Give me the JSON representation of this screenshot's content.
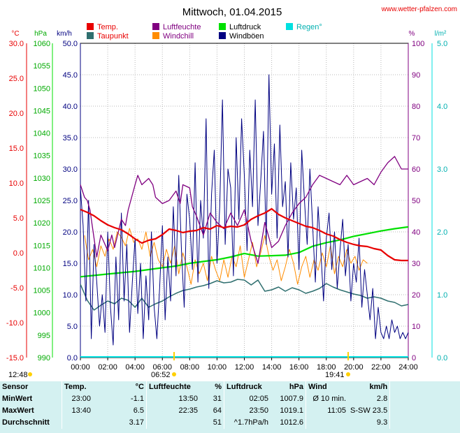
{
  "page": {
    "title": "Mittwoch, 01.04.2015",
    "website": "www.wetter-pfalzen.com"
  },
  "colors": {
    "temp": "#e80000",
    "dewpoint": "#2f6f6f",
    "humidity": "#800080",
    "windchill": "#ff8c00",
    "pressure": "#00e000",
    "gusts": "#000080",
    "rain": "#00e0e0"
  },
  "chart_data": {
    "type": "line",
    "title": "Mittwoch, 01.04.2015",
    "legend_placement": "top",
    "grid": true,
    "x_tick_labels": [
      "00:00",
      "02:00",
      "04:00",
      "06:00",
      "08:00",
      "10:00",
      "12:00",
      "14:00",
      "16:00",
      "18:00",
      "20:00",
      "22:00",
      "24:00"
    ],
    "x_range_hours": [
      0,
      24
    ],
    "axes": {
      "temp": {
        "unit": "°C",
        "range": [
          -15,
          30
        ],
        "ticks": [
          "30.0",
          "25.0",
          "20.0",
          "15.0",
          "10.0",
          "5.0",
          "0.0",
          "-5.0",
          "-10.0",
          "-15.0"
        ]
      },
      "pressure": {
        "unit": "hPa",
        "range": [
          990,
          1060
        ],
        "ticks": [
          "1060",
          "1055",
          "1050",
          "1045",
          "1040",
          "1035",
          "1030",
          "1025",
          "1020",
          "1015",
          "1010",
          "1005",
          "1000",
          "995",
          "990"
        ]
      },
      "wind": {
        "unit": "km/h",
        "range": [
          0,
          50
        ],
        "ticks": [
          "50.0",
          "45.0",
          "40.0",
          "35.0",
          "30.0",
          "25.0",
          "20.0",
          "15.0",
          "10.0",
          "5.0",
          "0.0"
        ]
      },
      "humidity": {
        "unit": "%",
        "range": [
          0,
          100
        ],
        "ticks": [
          "100",
          "90",
          "80",
          "70",
          "60",
          "50",
          "40",
          "30",
          "20",
          "10",
          "0"
        ]
      },
      "rain": {
        "unit": "l/m²",
        "range": [
          0,
          5
        ],
        "ticks": [
          "5.0",
          "4.0",
          "3.0",
          "2.0",
          "1.0",
          "0.0"
        ]
      }
    },
    "sun": {
      "sunrise": "06:52",
      "sunset": "19:41",
      "moonrise": "12:48"
    },
    "series": [
      {
        "name": "Temp.",
        "color": "#e80000",
        "axis": "temp",
        "width": 2.2,
        "x": [
          0,
          0.5,
          1,
          1.5,
          2,
          2.5,
          3,
          3.5,
          4,
          4.5,
          5,
          5.5,
          6,
          6.5,
          7,
          7.5,
          8,
          8.5,
          9,
          9.5,
          10,
          10.5,
          11,
          11.5,
          12,
          12.5,
          13,
          13.5,
          14,
          14.5,
          15,
          15.5,
          16,
          16.5,
          17,
          17.5,
          18,
          18.5,
          19,
          19.5,
          20,
          20.5,
          21,
          21.5,
          22,
          22.5,
          23,
          23.5,
          24
        ],
        "values": [
          6.2,
          5.8,
          5.3,
          4.6,
          4.0,
          3.6,
          3.3,
          2.7,
          2.0,
          1.4,
          1.8,
          2.0,
          2.6,
          3.4,
          3.2,
          2.9,
          3.1,
          3.2,
          3.6,
          3.4,
          3.9,
          3.6,
          3.8,
          3.7,
          4.0,
          4.8,
          5.3,
          5.7,
          6.3,
          5.5,
          5.0,
          4.6,
          4.2,
          3.8,
          3.6,
          3.2,
          2.7,
          2.4,
          1.9,
          1.5,
          1.2,
          1.0,
          0.9,
          0.6,
          0.4,
          -0.4,
          -1.0,
          -1.1,
          -1.1
        ]
      },
      {
        "name": "Taupunkt",
        "color": "#2f6f6f",
        "axis": "temp",
        "width": 1.5,
        "x": [
          0,
          0.5,
          1,
          1.5,
          2,
          2.5,
          3,
          3.5,
          4,
          4.5,
          5,
          5.5,
          6,
          6.5,
          7,
          7.5,
          8,
          8.5,
          9,
          9.5,
          10,
          10.5,
          11,
          11.5,
          12,
          12.5,
          13,
          13.5,
          14,
          14.5,
          15,
          15.5,
          16,
          16.5,
          17,
          17.5,
          18,
          18.5,
          19,
          19.5,
          20,
          20.5,
          21,
          21.5,
          22,
          22.5,
          23,
          23.5,
          24
        ],
        "values": [
          -4.5,
          -6.8,
          -8.2,
          -7.5,
          -6.9,
          -7.3,
          -6.5,
          -6.8,
          -7.8,
          -6.5,
          -7.8,
          -7.3,
          -6.9,
          -6.3,
          -5.8,
          -5.4,
          -5.2,
          -4.9,
          -4.7,
          -4.4,
          -4.0,
          -4.3,
          -4.2,
          -3.8,
          -3.9,
          -4.6,
          -3.9,
          -5.5,
          -5.3,
          -4.9,
          -5.5,
          -5.0,
          -5.3,
          -5.8,
          -5.5,
          -5.1,
          -4.4,
          -4.9,
          -5.3,
          -5.6,
          -5.9,
          -6.1,
          -6.5,
          -6.3,
          -6.5,
          -6.9,
          -7.1,
          -7.6,
          -7.4
        ]
      },
      {
        "name": "Luftfeuchte",
        "color": "#800080",
        "axis": "humidity",
        "width": 1.3,
        "x": [
          0,
          0.3,
          0.5,
          0.7,
          1,
          1.2,
          1.5,
          1.8,
          2,
          2.3,
          2.5,
          3,
          3.3,
          3.5,
          4,
          4.2,
          4.5,
          5,
          5.3,
          5.5,
          6,
          6.5,
          7,
          7.3,
          7.5,
          8,
          8.2,
          8.5,
          9,
          9.5,
          10,
          10.5,
          11,
          11.5,
          12,
          12.5,
          13,
          13.5,
          14,
          14.5,
          15,
          15.5,
          16,
          16.5,
          17,
          17.5,
          18,
          18.5,
          19,
          19.5,
          20,
          20.5,
          21,
          21.5,
          22,
          22.5,
          23,
          23.5,
          24
        ],
        "values": [
          55,
          51,
          50,
          47,
          38,
          32,
          39,
          36,
          34,
          39,
          35,
          44,
          42,
          47,
          55,
          58,
          55,
          57,
          55,
          51,
          49,
          50,
          53,
          49,
          55,
          54,
          48,
          45,
          39,
          46,
          43,
          41,
          46,
          42,
          47,
          37,
          30,
          43,
          35,
          37,
          42,
          46,
          49,
          51,
          55,
          58,
          57,
          56,
          55,
          58,
          55,
          56,
          57,
          55,
          59,
          62,
          64,
          60,
          60
        ]
      },
      {
        "name": "Windchill",
        "color": "#ff8c00",
        "axis": "temp",
        "width": 1,
        "x": [
          0.3,
          0.6,
          0.9,
          1.2,
          1.5,
          1.8,
          2.1,
          2.4,
          2.7,
          3,
          3.3,
          3.6,
          3.9,
          4.2,
          4.5,
          4.8,
          5.1,
          5.4,
          5.7,
          6,
          6.3,
          6.6,
          6.9,
          7.2,
          7.5,
          7.8,
          8.1,
          8.4,
          8.7,
          9,
          9.3,
          9.6,
          9.9,
          10.2,
          10.5,
          10.8,
          11.1,
          11.4,
          11.7,
          12,
          12.3,
          12.6,
          12.9,
          13.2,
          13.5,
          13.8,
          14.1,
          14.4,
          14.7,
          15,
          15.3,
          15.6,
          15.9,
          16.2,
          16.5,
          16.8,
          17.1,
          17.4,
          17.7,
          18,
          18.3,
          18.6,
          18.9,
          19.2,
          19.5,
          19.8,
          20.1,
          20.4,
          20.7,
          21
        ],
        "values": [
          2.5,
          -1.0,
          0.5,
          -2.0,
          1.0,
          -0.5,
          2.0,
          0.5,
          3.0,
          2.2,
          1.0,
          3.5,
          1.5,
          2.0,
          0.5,
          3.0,
          -0.5,
          1.5,
          -1.0,
          -2.0,
          0.5,
          -1.5,
          1.0,
          -3.0,
          0.0,
          -2.0,
          -4.5,
          -1.0,
          -3.0,
          -1.5,
          -4.0,
          -0.5,
          -2.5,
          -4.0,
          -1.0,
          -3.5,
          -0.5,
          -2.0,
          1.0,
          -3.5,
          -1.0,
          1.5,
          -2.0,
          0.0,
          2.5,
          -0.5,
          -2.5,
          -1.0,
          -4.0,
          -2.0,
          0.5,
          -1.5,
          -4.5,
          -2.0,
          -0.5,
          -3.5,
          -1.0,
          -2.5,
          0.0,
          -2.0,
          1.0,
          -3.0,
          -0.5,
          -2.0,
          0.5,
          -1.5,
          -0.5,
          -2.5,
          -1.0,
          -1.5
        ]
      },
      {
        "name": "Luftdruck",
        "color": "#00e000",
        "axis": "pressure",
        "width": 2.2,
        "x": [
          0,
          1,
          2,
          3,
          4,
          5,
          6,
          7,
          8,
          9,
          10,
          11,
          12,
          13,
          14,
          15,
          16,
          17,
          18,
          19,
          20,
          21,
          22,
          23,
          24
        ],
        "values": [
          1008.0,
          1008.3,
          1008.6,
          1008.9,
          1009.2,
          1009.6,
          1010.0,
          1010.4,
          1011.0,
          1011.4,
          1011.8,
          1012.4,
          1013.2,
          1012.6,
          1012.7,
          1012.8,
          1013.4,
          1014.8,
          1015.6,
          1016.2,
          1017.0,
          1017.6,
          1018.2,
          1018.7,
          1019.1
        ]
      },
      {
        "name": "Windböen",
        "color": "#000080",
        "axis": "wind",
        "width": 1,
        "x": [
          0,
          0.2,
          0.4,
          0.6,
          0.8,
          1,
          1.2,
          1.4,
          1.6,
          1.8,
          2,
          2.2,
          2.4,
          2.6,
          2.8,
          3,
          3.2,
          3.4,
          3.6,
          3.8,
          4,
          4.2,
          4.4,
          4.6,
          4.8,
          5,
          5.2,
          5.4,
          5.6,
          5.8,
          6,
          6.2,
          6.4,
          6.6,
          6.8,
          7,
          7.2,
          7.4,
          7.6,
          7.8,
          8,
          8.2,
          8.4,
          8.6,
          8.8,
          9,
          9.2,
          9.4,
          9.6,
          9.8,
          10,
          10.2,
          10.4,
          10.6,
          10.8,
          11,
          11.2,
          11.4,
          11.6,
          11.8,
          12,
          12.2,
          12.4,
          12.6,
          12.8,
          13,
          13.2,
          13.4,
          13.6,
          13.8,
          14,
          14.2,
          14.4,
          14.6,
          14.8,
          15,
          15.2,
          15.4,
          15.6,
          15.8,
          16,
          16.2,
          16.4,
          16.6,
          16.8,
          17,
          17.2,
          17.4,
          17.6,
          17.8,
          18,
          18.2,
          18.4,
          18.6,
          18.8,
          19,
          19.2,
          19.4,
          19.6,
          19.8,
          20,
          20.2,
          20.4,
          20.6,
          20.8,
          21,
          21.2,
          21.4,
          21.6,
          21.8,
          22,
          22.2,
          22.4,
          22.6,
          22.8,
          23,
          23.2,
          23.4,
          23.6,
          23.8,
          24
        ],
        "values": [
          27,
          21,
          9,
          25,
          3,
          18,
          12,
          5,
          10,
          4,
          20,
          8,
          2,
          16,
          6,
          23,
          9,
          18,
          4,
          12,
          19,
          7,
          15,
          3,
          13,
          6,
          20,
          8,
          3,
          11,
          21,
          6,
          16,
          9,
          24,
          13,
          29,
          17,
          8,
          26,
          22,
          14,
          31,
          12,
          25,
          19,
          38,
          11,
          26,
          33,
          15,
          24,
          41,
          18,
          30,
          27,
          13,
          35,
          22,
          38,
          29,
          17,
          33,
          24,
          41,
          21,
          28,
          36,
          18,
          45,
          26,
          34,
          19,
          37,
          24,
          28,
          16,
          31,
          22,
          27,
          14,
          33,
          25,
          18,
          30,
          21,
          12,
          24,
          17,
          9,
          19,
          23,
          14,
          20,
          11,
          17,
          22,
          13,
          18,
          9,
          15,
          12,
          19,
          8,
          14,
          10,
          6,
          11,
          3,
          8,
          4,
          3,
          5,
          3,
          6,
          4,
          5,
          3,
          4,
          3,
          4
        ]
      }
    ]
  },
  "stats": {
    "headers": {
      "sensor": "Sensor",
      "temp": "Temp.",
      "temp_unit": "°C",
      "hum": "Luftfeuchte",
      "hum_unit": "%",
      "press": "Luftdruck",
      "press_unit": "hPa",
      "wind": "Wind",
      "wind_unit": "km/h"
    },
    "rows": [
      {
        "label": "MinWert",
        "temp_time": "23:00",
        "temp_val": "-1.1",
        "hum_time": "13:50",
        "hum_val": "31",
        "press_time": "02:05",
        "press_val": "1007.9",
        "wind_time": "Ø 10 min.",
        "wind_val": "2.8"
      },
      {
        "label": "MaxWert",
        "temp_time": "13:40",
        "temp_val": "6.5",
        "hum_time": "22:35",
        "hum_val": "64",
        "press_time": "23:50",
        "press_val": "1019.1",
        "wind_time": "11:05",
        "wind_val": "S-SW 23.5"
      },
      {
        "label": "Durchschnitt",
        "temp_time": "",
        "temp_val": "3.17",
        "hum_time": "",
        "hum_val": "51",
        "press_time": "^1.7hPa/h",
        "press_val": "1012.6",
        "wind_time": "",
        "wind_val": "9.3"
      }
    ]
  }
}
